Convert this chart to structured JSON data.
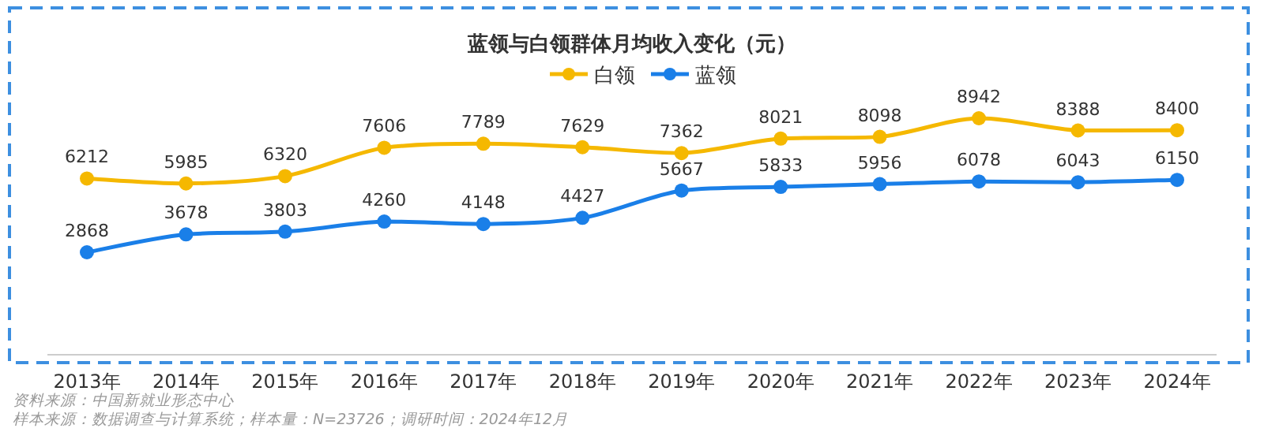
{
  "chart_data": {
    "type": "line",
    "title": "蓝领与白领群体月均收入变化（元）",
    "categories": [
      "2013年",
      "2014年",
      "2015年",
      "2016年",
      "2017年",
      "2018年",
      "2019年",
      "2020年",
      "2021年",
      "2022年",
      "2023年",
      "2024年"
    ],
    "series": [
      {
        "name": "白领",
        "color": "#f5b800",
        "values": [
          6212,
          5985,
          6320,
          7606,
          7789,
          7629,
          7362,
          8021,
          8098,
          8942,
          8388,
          8400
        ]
      },
      {
        "name": "蓝领",
        "color": "#1a7fe8",
        "values": [
          2868,
          3678,
          3803,
          4260,
          4148,
          4427,
          5667,
          5833,
          5956,
          6078,
          6043,
          6150
        ]
      }
    ],
    "data_labels": true,
    "legend": "top",
    "marker": "circle",
    "annotations": [
      "资料来源：中国新就业形态中心",
      "样本来源：数据调查与计算系统；样本量：N=23726；调研时间：2024年12月"
    ]
  }
}
